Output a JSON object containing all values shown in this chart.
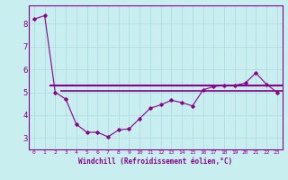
{
  "xlabel": "Windchill (Refroidissement éolien,°C)",
  "background_color": "#c8eef0",
  "grid_color": "#b0dde0",
  "line_color": "#880088",
  "xlim": [
    -0.5,
    23.5
  ],
  "ylim": [
    2.5,
    8.8
  ],
  "yticks": [
    3,
    4,
    5,
    6,
    7,
    8
  ],
  "xticks": [
    0,
    1,
    2,
    3,
    4,
    5,
    6,
    7,
    8,
    9,
    10,
    11,
    12,
    13,
    14,
    15,
    16,
    17,
    18,
    19,
    20,
    21,
    22,
    23
  ],
  "x_data": [
    0,
    1,
    2,
    3,
    4,
    5,
    6,
    7,
    8,
    9,
    10,
    11,
    12,
    13,
    14,
    15,
    16,
    17,
    18,
    19,
    20,
    21,
    22,
    23
  ],
  "y_data": [
    8.2,
    8.35,
    5.0,
    4.7,
    3.6,
    3.25,
    3.25,
    3.05,
    3.35,
    3.4,
    3.85,
    4.3,
    4.45,
    4.65,
    4.55,
    4.4,
    5.1,
    5.25,
    5.3,
    5.3,
    5.4,
    5.85,
    5.35,
    5.0
  ],
  "hline1": 5.3,
  "hline2": 5.05,
  "hline1_xstart": 1.5,
  "hline1_xend": 23.5,
  "hline2_xstart": 2.5,
  "hline2_xend": 23.5,
  "xlabel_fontsize": 5.5,
  "ytick_fontsize": 6.5,
  "xtick_fontsize": 4.5
}
